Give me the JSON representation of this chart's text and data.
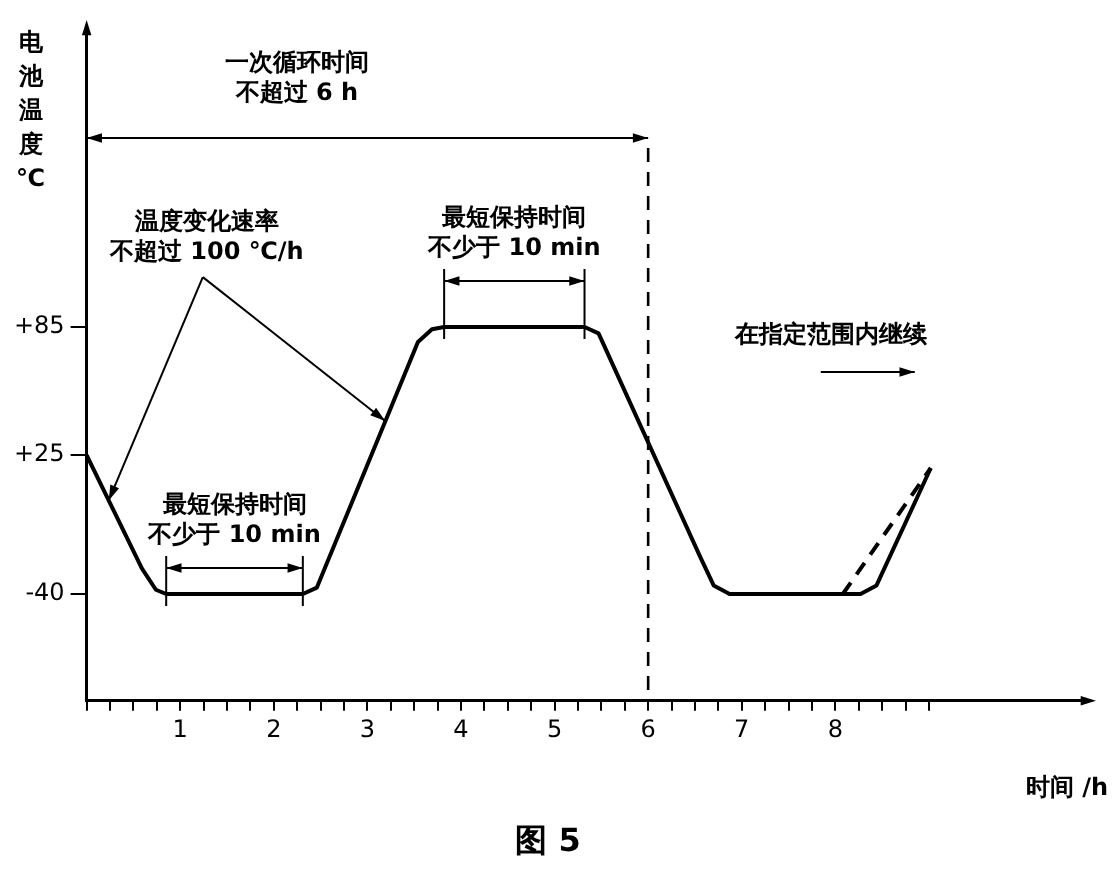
{
  "chart_data": {
    "type": "line",
    "title": "图 5",
    "xlabel": "时间 /h",
    "ylabel": "电池温度℃",
    "xlim": [
      0,
      10.7
    ],
    "ylim": [
      -90,
      225
    ],
    "xticks": [
      {
        "value": 0,
        "label": null
      },
      {
        "value": 0.25,
        "label": null
      },
      {
        "value": 0.5,
        "label": null
      },
      {
        "value": 0.75,
        "label": null
      },
      1,
      {
        "value": 1.25,
        "label": null
      },
      {
        "value": 1.5,
        "label": null
      },
      {
        "value": 1.75,
        "label": null
      },
      2,
      {
        "value": 2.25,
        "label": null
      },
      {
        "value": 2.5,
        "label": null
      },
      {
        "value": 2.75,
        "label": null
      },
      3,
      {
        "value": 3.25,
        "label": null
      },
      {
        "value": 3.5,
        "label": null
      },
      {
        "value": 3.75,
        "label": null
      },
      4,
      {
        "value": 4.25,
        "label": null
      },
      {
        "value": 4.5,
        "label": null
      },
      {
        "value": 4.75,
        "label": null
      },
      5,
      {
        "value": 5.25,
        "label": null
      },
      {
        "value": 5.5,
        "label": null
      },
      {
        "value": 5.75,
        "label": null
      },
      6,
      {
        "value": 6.25,
        "label": null
      },
      {
        "value": 6.5,
        "label": null
      },
      {
        "value": 6.75,
        "label": null
      },
      7,
      {
        "value": 7.25,
        "label": null
      },
      {
        "value": 7.5,
        "label": null
      },
      {
        "value": 7.75,
        "label": null
      },
      8,
      {
        "value": 8.25,
        "label": null
      },
      {
        "value": 8.5,
        "label": null
      },
      {
        "value": 8.75,
        "label": null
      },
      {
        "value": 9,
        "label": null
      }
    ],
    "yticks": [
      {
        "value": 85,
        "label": "+85"
      },
      {
        "value": 25,
        "label": "+25"
      },
      -40
    ],
    "series": [
      {
        "color": "#000000",
        "x": [
          0,
          0.59,
          0.74,
          0.85,
          2.31,
          2.46,
          3.54,
          3.69,
          3.82,
          5.32,
          5.47,
          6.55,
          6.7,
          6.87,
          8.27,
          8.44,
          9.02
        ],
        "values": [
          25,
          -28,
          -38,
          -40,
          -40,
          -37,
          78,
          84,
          85,
          85,
          82,
          -22,
          -36,
          -40,
          -40,
          -36,
          19
        ]
      },
      {
        "color": "#000000",
        "line_style": "dashed",
        "x": [
          8.08,
          9.02
        ],
        "values": [
          -40,
          19
        ]
      }
    ],
    "ref_lines": [
      {
        "axis": "x",
        "value": 6,
        "label": null,
        "color": "#000000",
        "line_style": "dashed"
      }
    ],
    "annotations": [
      "一次循环时间",
      "不超过 6 h",
      "温度变化速率",
      {
        "text": "不超过 100 ℃/h",
        "x": 3.19,
        "y": 41
      },
      "最短保持时间",
      "不少于 10 min",
      "最短保持时间",
      "不少于 10 min",
      "在指定范围内继续"
    ],
    "grid": false,
    "legend": false,
    "marker": "none"
  }
}
